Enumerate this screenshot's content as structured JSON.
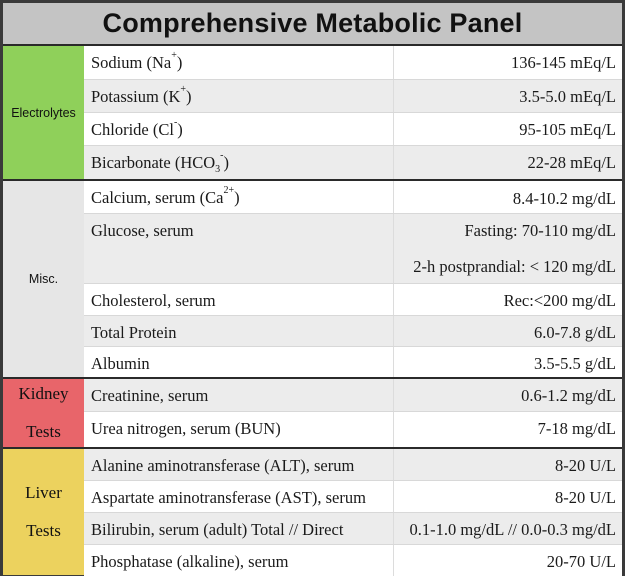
{
  "title": "Comprehensive Metabolic Panel",
  "colors": {
    "electrolytes": "#8fd05a",
    "misc": "#e6e6e6",
    "kidney": "#e8656a",
    "liver": "#ecd25e",
    "header": "#c4c4c4"
  },
  "sections": {
    "electrolytes": {
      "label": "Electrolytes",
      "rows": [
        {
          "name": "Sodium (Na",
          "sup": "+",
          "after": ")",
          "value": "136-145 mEq/L"
        },
        {
          "name": "Potassium (K",
          "sup": "+",
          "after": ")",
          "value": "3.5-5.0 mEq/L"
        },
        {
          "name": "Chloride (Cl",
          "sup": "-",
          "after": ")",
          "value": "95-105 mEq/L"
        },
        {
          "name": "Bicarbonate (HCO",
          "sub": "3",
          "sup": "-",
          "after": ")",
          "value": "22-28 mEq/L"
        }
      ]
    },
    "misc": {
      "label": "Misc.",
      "rows": [
        {
          "name": "Calcium, serum (Ca",
          "sup": "2+",
          "after": ")",
          "value": "8.4-10.2 mg/dL"
        },
        {
          "name": "Glucose, serum",
          "value": "Fasting: 70-110 mg/dL",
          "value2": "2-h postprandial: < 120 mg/dL"
        },
        {
          "name": "Cholesterol, serum",
          "value": "Rec:<200 mg/dL"
        },
        {
          "name": "Total Protein",
          "value": "6.0-7.8 g/dL"
        },
        {
          "name": "Albumin",
          "value": "3.5-5.5 g/dL"
        }
      ]
    },
    "kidney": {
      "label_line1": "Kidney",
      "label_line2": "Tests",
      "rows": [
        {
          "name": "Creatinine, serum",
          "value": "0.6-1.2 mg/dL"
        },
        {
          "name": "Urea nitrogen, serum (BUN)",
          "value": "7-18 mg/dL"
        }
      ]
    },
    "liver": {
      "label_line1": "Liver",
      "label_line2": "Tests",
      "rows": [
        {
          "name": "Alanine aminotransferase (ALT), serum",
          "value": "8-20 U/L"
        },
        {
          "name": "Aspartate aminotransferase (AST), serum",
          "value": "8-20 U/L"
        },
        {
          "name": "Bilirubin, serum (adult) Total // Direct",
          "value": "0.1-1.0 mg/dL // 0.0-0.3 mg/dL"
        },
        {
          "name": "Phosphatase (alkaline), serum",
          "value": "20-70 U/L"
        }
      ]
    }
  }
}
